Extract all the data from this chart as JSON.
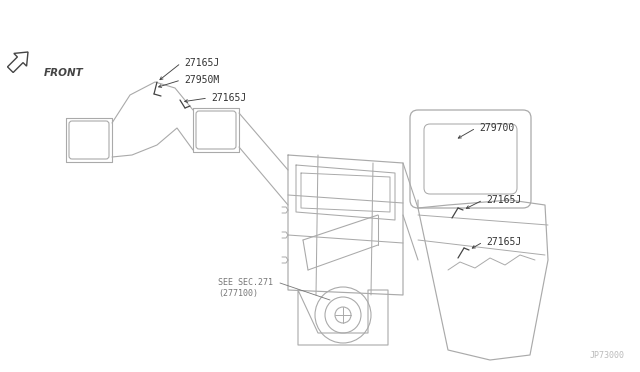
{
  "bg_color": "#ffffff",
  "lc": "#aaaaaa",
  "dc": "#444444",
  "tc": "#777777",
  "label_color": "#333333",
  "part_number_bottom_right": "JP73000",
  "front_label": "FRONT",
  "labels": {
    "27165J": "27165J",
    "27950M": "27950M",
    "279700": "279700",
    "see_sec": "SEE SEC.271",
    "see_277100": "(277100)"
  },
  "fs": 7.0,
  "fs_small": 6.0,
  "figsize": [
    6.4,
    3.72
  ],
  "dpi": 100
}
